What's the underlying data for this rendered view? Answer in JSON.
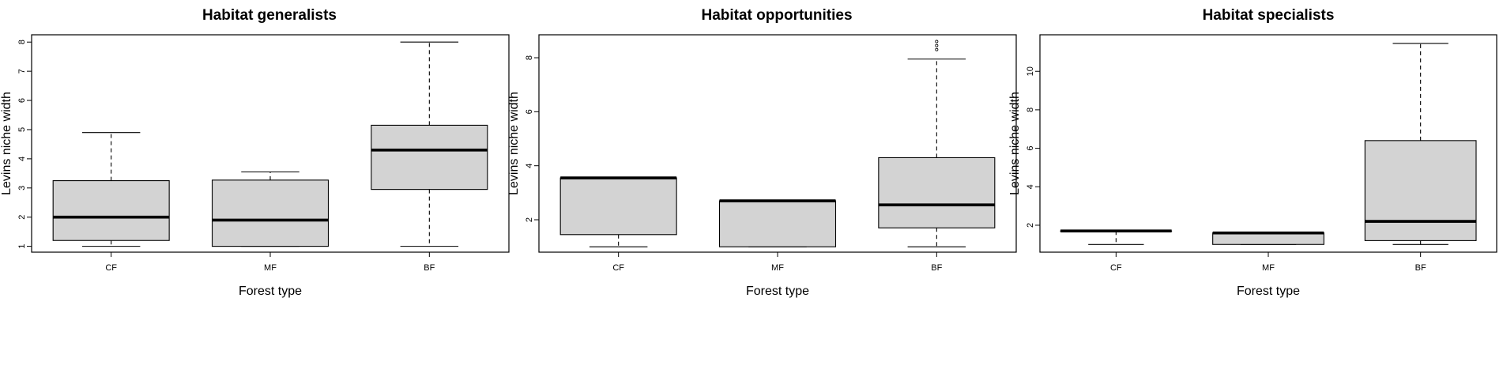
{
  "chart_data": [
    {
      "type": "boxplot",
      "title": "Habitat generalists",
      "xlabel": "Forest type",
      "ylabel": "Levins niche width",
      "categories": [
        "CF",
        "MF",
        "BF"
      ],
      "yticks": [
        1,
        2,
        3,
        4,
        5,
        6,
        7,
        8
      ],
      "ylim": [
        0.8,
        8.25
      ],
      "boxes": [
        {
          "category": "CF",
          "min": 1.0,
          "q1": 1.2,
          "median": 2.0,
          "q3": 3.25,
          "max": 4.9,
          "outliers": []
        },
        {
          "category": "MF",
          "min": 1.0,
          "q1": 1.0,
          "median": 1.9,
          "q3": 3.27,
          "max": 3.55,
          "outliers": []
        },
        {
          "category": "BF",
          "min": 1.0,
          "q1": 2.95,
          "median": 4.3,
          "q3": 5.15,
          "max": 8.0,
          "outliers": []
        }
      ]
    },
    {
      "type": "boxplot",
      "title": "Habitat opportunities",
      "xlabel": "Forest type",
      "ylabel": "Levins niche width",
      "categories": [
        "CF",
        "MF",
        "BF"
      ],
      "yticks": [
        2,
        4,
        6,
        8
      ],
      "ylim": [
        0.8,
        8.85
      ],
      "boxes": [
        {
          "category": "CF",
          "min": 1.0,
          "q1": 1.45,
          "median": 3.55,
          "q3": 3.55,
          "max": 3.55,
          "outliers": []
        },
        {
          "category": "MF",
          "min": 1.0,
          "q1": 1.0,
          "median": 2.7,
          "q3": 2.7,
          "max": 2.7,
          "outliers": []
        },
        {
          "category": "BF",
          "min": 1.0,
          "q1": 1.7,
          "median": 2.55,
          "q3": 4.3,
          "max": 7.95,
          "outliers": [
            8.3,
            8.45,
            8.6
          ]
        }
      ]
    },
    {
      "type": "boxplot",
      "title": "Habitat specialists",
      "xlabel": "Forest type",
      "ylabel": "Levins niche width",
      "categories": [
        "CF",
        "MF",
        "BF"
      ],
      "yticks": [
        2,
        4,
        6,
        8,
        10
      ],
      "ylim": [
        0.6,
        11.9
      ],
      "boxes": [
        {
          "category": "CF",
          "min": 1.0,
          "q1": 1.7,
          "median": 1.7,
          "q3": 1.7,
          "max": 1.7,
          "outliers": []
        },
        {
          "category": "MF",
          "min": 1.0,
          "q1": 1.0,
          "median": 1.6,
          "q3": 1.6,
          "max": 1.6,
          "outliers": []
        },
        {
          "category": "BF",
          "min": 1.0,
          "q1": 1.2,
          "median": 2.2,
          "q3": 6.4,
          "max": 11.45,
          "outliers": []
        }
      ]
    }
  ]
}
